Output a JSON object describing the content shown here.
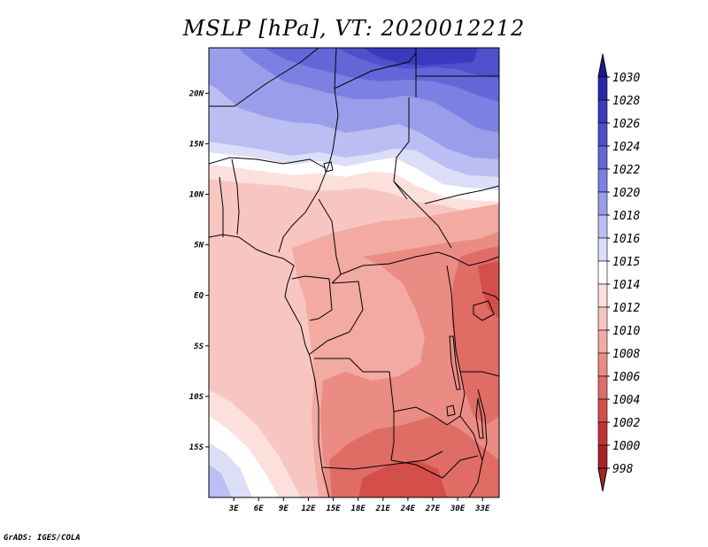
{
  "title": "MSLP [hPa], VT: 2020012212",
  "credit": "GrADS: IGES/COLA",
  "map": {
    "lat_range": [
      -20,
      24.5
    ],
    "lon_range": [
      0,
      35
    ]
  },
  "lat_ticks": [
    {
      "value": 20,
      "label": "20N"
    },
    {
      "value": 15,
      "label": "15N"
    },
    {
      "value": 10,
      "label": "10N"
    },
    {
      "value": 5,
      "label": "5N"
    },
    {
      "value": 0,
      "label": "EQ"
    },
    {
      "value": -5,
      "label": "5S"
    },
    {
      "value": -10,
      "label": "10S"
    },
    {
      "value": -15,
      "label": "15S"
    }
  ],
  "lon_ticks": [
    {
      "value": 3,
      "label": "3E"
    },
    {
      "value": 6,
      "label": "6E"
    },
    {
      "value": 9,
      "label": "9E"
    },
    {
      "value": 12,
      "label": "12E"
    },
    {
      "value": 15,
      "label": "15E"
    },
    {
      "value": 18,
      "label": "18E"
    },
    {
      "value": 21,
      "label": "21E"
    },
    {
      "value": 24,
      "label": "24E"
    },
    {
      "value": 27,
      "label": "27E"
    },
    {
      "value": 30,
      "label": "30E"
    },
    {
      "value": 33,
      "label": "33E"
    }
  ],
  "colorbar": [
    {
      "label": "1030",
      "color": "#1e1a8c"
    },
    {
      "label": "1028",
      "color": "#2a28a8"
    },
    {
      "label": "1026",
      "color": "#3a3abe"
    },
    {
      "label": "1024",
      "color": "#4e50cc"
    },
    {
      "label": "1022",
      "color": "#6466d8"
    },
    {
      "label": "1020",
      "color": "#7c80e2"
    },
    {
      "label": "1018",
      "color": "#9a9eea"
    },
    {
      "label": "1016",
      "color": "#babef2"
    },
    {
      "label": "1015",
      "color": "#dcdef8"
    },
    {
      "label": "1014",
      "color": "#ffffff"
    },
    {
      "label": "1012",
      "color": "#fce0dc"
    },
    {
      "label": "1010",
      "color": "#f8c6c0"
    },
    {
      "label": "1008",
      "color": "#f2aaa2"
    },
    {
      "label": "1006",
      "color": "#ea8c84"
    },
    {
      "label": "1004",
      "color": "#e06c66"
    },
    {
      "label": "1002",
      "color": "#d44e4a"
    },
    {
      "label": "1000",
      "color": "#c23434"
    },
    {
      "label": "998",
      "color": "#a82222"
    }
  ],
  "top_arrow_color": "#1e1a8c",
  "bottom_arrow_color": "#a82222"
}
